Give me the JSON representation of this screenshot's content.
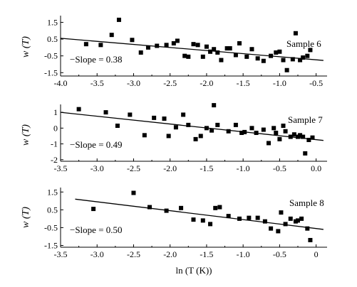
{
  "chart_data": [
    {
      "type": "scatter",
      "title": "Sample 6",
      "ylabel": "w (T)",
      "annotation": "−Slope = 0.38",
      "xlim": [
        -4.0,
        -0.35
      ],
      "ylim": [
        -1.7,
        1.9
      ],
      "xticks": [
        -4.0,
        -3.5,
        -3.0,
        -2.5,
        -2.0,
        -1.5,
        -1.0,
        -0.5
      ],
      "xtick_labels": [
        "-4.0",
        "-3.5",
        "-3.0",
        "-2.5",
        "-2.0",
        "-1.5",
        "-1.0",
        "-0.5"
      ],
      "yticks": [
        1.5,
        0.5,
        -0.5,
        -1.5
      ],
      "ytick_labels": [
        "1.5",
        "0.5",
        "-0.5",
        "-1.5"
      ],
      "fit": [
        [
          -4.0,
          0.55
        ],
        [
          -0.4,
          -0.77
        ]
      ],
      "x": [
        -3.65,
        -3.45,
        -3.3,
        -3.2,
        -3.02,
        -2.9,
        -2.8,
        -2.68,
        -2.55,
        -2.45,
        -2.4,
        -2.3,
        -2.25,
        -2.18,
        -2.12,
        -2.05,
        -2.0,
        -1.95,
        -1.9,
        -1.85,
        -1.8,
        -1.72,
        -1.68,
        -1.6,
        -1.55,
        -1.45,
        -1.38,
        -1.3,
        -1.22,
        -1.12,
        -1.05,
        -1.0,
        -0.95,
        -0.9,
        -0.82,
        -0.78,
        -0.72,
        -0.68,
        -0.62,
        -0.58
      ],
      "y": [
        0.2,
        0.15,
        0.75,
        1.65,
        0.45,
        -0.3,
        0.0,
        0.1,
        0.15,
        0.25,
        0.4,
        -0.5,
        -0.55,
        0.2,
        0.15,
        -0.55,
        0.05,
        -0.25,
        -0.1,
        -0.3,
        -0.75,
        -0.05,
        -0.05,
        -0.45,
        0.25,
        -0.55,
        -0.1,
        -0.65,
        -0.8,
        -0.5,
        -0.3,
        -0.25,
        -0.75,
        -1.35,
        -0.7,
        0.85,
        -0.75,
        -0.6,
        -0.5,
        -0.15
      ]
    },
    {
      "type": "scatter",
      "title": "Sample 7",
      "ylabel": "w (T)",
      "annotation": "−Slope = 0.49",
      "xlim": [
        -3.5,
        0.15
      ],
      "ylim": [
        -2.1,
        1.5
      ],
      "xticks": [
        -3.5,
        -3.0,
        -2.5,
        -2.0,
        -1.5,
        -1.0,
        -0.5,
        0.0
      ],
      "xtick_labels": [
        "-3.5",
        "-3.0",
        "-2.5",
        "-2.0",
        "-1.5",
        "-1.0",
        "-0.5",
        "0.0"
      ],
      "yticks": [
        1,
        0,
        -1,
        -2
      ],
      "ytick_labels": [
        "1",
        "0",
        "-1",
        "-2"
      ],
      "fit": [
        [
          -3.5,
          1.0
        ],
        [
          0.1,
          -0.78
        ]
      ],
      "x": [
        -3.25,
        -2.88,
        -2.72,
        -2.55,
        -2.35,
        -2.22,
        -2.08,
        -2.02,
        -1.92,
        -1.82,
        -1.75,
        -1.65,
        -1.58,
        -1.5,
        -1.43,
        -1.4,
        -1.35,
        -1.2,
        -1.1,
        -1.02,
        -0.98,
        -0.88,
        -0.82,
        -0.72,
        -0.65,
        -0.58,
        -0.55,
        -0.5,
        -0.45,
        -0.42,
        -0.35,
        -0.3,
        -0.25,
        -0.22,
        -0.18,
        -0.15,
        -0.1,
        -0.05
      ],
      "y": [
        1.2,
        1.0,
        0.15,
        0.85,
        -0.45,
        0.65,
        0.6,
        -0.5,
        0.05,
        0.85,
        0.2,
        -0.7,
        -0.5,
        0.0,
        -0.15,
        1.45,
        0.2,
        -0.2,
        0.2,
        -0.3,
        -0.25,
        0.0,
        -0.3,
        -0.1,
        -0.95,
        0.0,
        -0.3,
        -0.7,
        0.15,
        -0.2,
        -0.55,
        -0.4,
        -0.55,
        -0.45,
        -0.55,
        -1.6,
        -0.75,
        -0.6
      ]
    },
    {
      "type": "scatter",
      "title": "Sample 8",
      "ylabel": "w (T)",
      "annotation": "−Slope = 0.50",
      "xlim": [
        -3.5,
        0.15
      ],
      "ylim": [
        -1.6,
        1.75
      ],
      "xticks": [
        -3.5,
        -3.0,
        -2.5,
        -2.0,
        -1.5,
        -1.0,
        -0.5,
        0.0
      ],
      "xtick_labels": [
        "-3.5",
        "-3.0",
        "-2.5",
        "-2.0",
        "-1.5",
        "-1.0",
        "-0.5",
        "0"
      ],
      "yticks": [
        1.5,
        0.5,
        -0.5,
        -1.5
      ],
      "ytick_labels": [
        "1.5",
        "0.5",
        "-0.5",
        "-1.5"
      ],
      "xlabel": "ln (T (K))",
      "fit": [
        [
          -3.3,
          1.1
        ],
        [
          0.1,
          -0.6
        ]
      ],
      "x": [
        -3.05,
        -2.5,
        -2.28,
        -2.05,
        -1.85,
        -1.68,
        -1.55,
        -1.45,
        -1.38,
        -1.32,
        -1.2,
        -1.05,
        -0.92,
        -0.8,
        -0.7,
        -0.62,
        -0.52,
        -0.48,
        -0.42,
        -0.35,
        -0.28,
        -0.25,
        -0.2,
        -0.12,
        -0.08
      ],
      "y": [
        0.55,
        1.45,
        0.65,
        0.45,
        0.6,
        -0.05,
        -0.1,
        -0.3,
        0.6,
        0.65,
        0.15,
        0.0,
        0.05,
        0.05,
        -0.15,
        -0.55,
        -0.7,
        0.35,
        -0.3,
        0.0,
        -0.15,
        -0.1,
        0.0,
        -0.55,
        -1.2
      ]
    }
  ]
}
